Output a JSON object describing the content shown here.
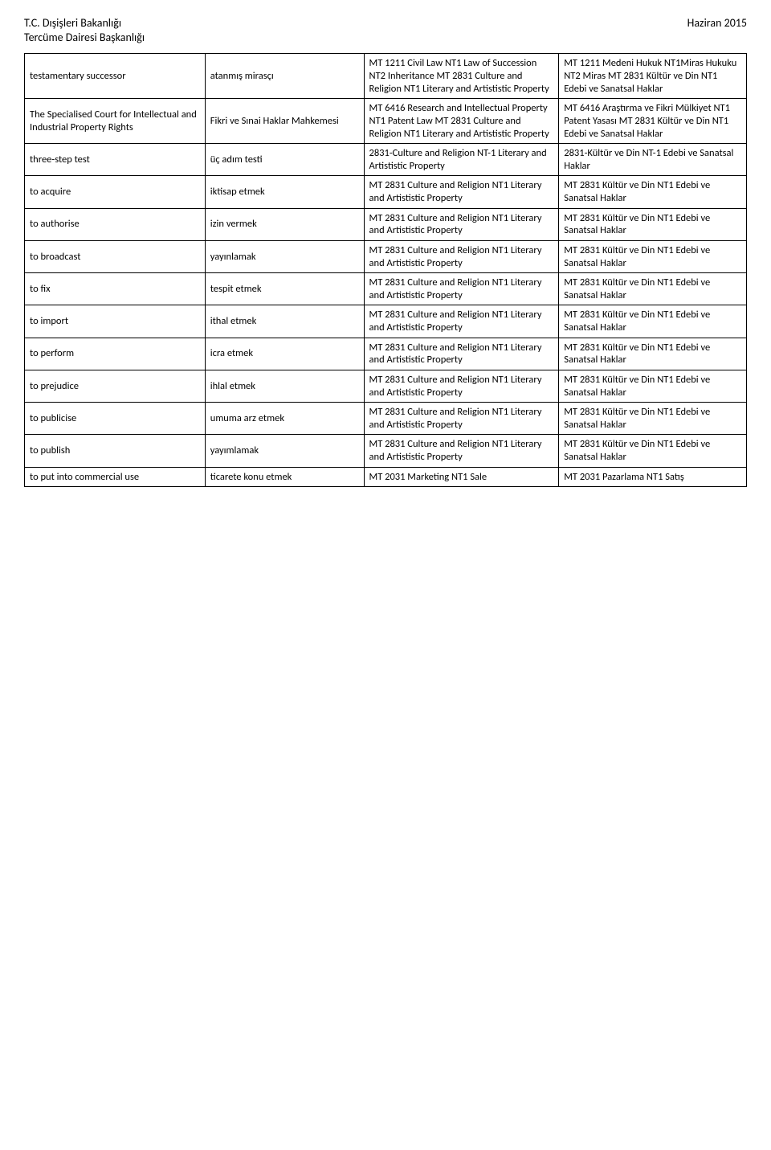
{
  "header": {
    "left_line1": "T.C. Dışişleri Bakanlığı",
    "left_line2": "Tercüme Dairesi Başkanlığı",
    "right": "Haziran 2015"
  },
  "rows": [
    {
      "en_term": "testamentary successor",
      "tr_term": "atanmış mirasçı",
      "en_cat": "MT 1211 Civil Law NT1 Law of Succession NT2 Inheritance MT 2831 Culture and Religion            NT1 Literary and Artististic Property",
      "tr_cat": "MT 1211 Medeni Hukuk NT1Miras Hukuku NT2 Miras MT 2831 Kültür ve Din NT1 Edebi ve Sanatsal Haklar"
    },
    {
      "en_term": "The Specialised Court for Intellectual and Industrial Property Rights",
      "tr_term": "Fikri ve Sınai Haklar Mahkemesi",
      "en_cat": "MT 6416  Research and Intellectual Property NT1  Patent Law MT 2831  Culture and Religion            NT1 Literary and Artististic Property",
      "tr_cat": "MT 6416 Araştırma ve Fikri Mülkiyet         NT1 Patent Yasası MT 2831  Kültür ve Din NT1 Edebi ve Sanatsal Haklar"
    },
    {
      "en_term": "three-step test",
      "tr_term": "üç adım testi",
      "en_cat": "2831-Culture and Religion NT-1 Literary and Artististic Property",
      "tr_cat": "2831-Kültür ve Din NT-1 Edebi ve Sanatsal Haklar"
    },
    {
      "en_term": "to acquire",
      "tr_term": "iktisap etmek",
      "en_cat": "MT 2831 Culture and Religion            NT1 Literary and Artististic Property",
      "tr_cat": "MT 2831 Kültür ve Din NT1 Edebi ve Sanatsal Haklar"
    },
    {
      "en_term": "to authorise",
      "tr_term": "izin vermek",
      "en_cat": "MT 2831 Culture and Religion            NT1 Literary and Artististic Property",
      "tr_cat": "MT 2831 Kültür ve Din NT1 Edebi ve Sanatsal Haklar"
    },
    {
      "en_term": "to broadcast",
      "tr_term": "yayınlamak",
      "en_cat": "MT 2831 Culture and Religion            NT1 Literary and Artististic Property",
      "tr_cat": "MT 2831 Kültür ve Din NT1 Edebi ve Sanatsal Haklar"
    },
    {
      "en_term": "to fix",
      "tr_term": "tespit etmek",
      "en_cat": "MT 2831 Culture and Religion            NT1 Literary and Artististic Property",
      "tr_cat": "MT 2831 Kültür ve Din NT1 Edebi ve Sanatsal Haklar"
    },
    {
      "en_term": "to import",
      "tr_term": "ithal etmek",
      "en_cat": "MT 2831 Culture and Religion            NT1 Literary and Artististic Property",
      "tr_cat": "MT 2831 Kültür ve Din NT1 Edebi ve Sanatsal Haklar"
    },
    {
      "en_term": "to perform",
      "tr_term": "icra etmek",
      "en_cat": "MT 2831 Culture and Religion            NT1 Literary and Artististic Property",
      "tr_cat": "MT 2831 Kültür ve Din NT1 Edebi ve Sanatsal Haklar"
    },
    {
      "en_term": "to prejudice",
      "tr_term": "ihlal etmek",
      "en_cat": "MT 2831 Culture and Religion            NT1 Literary and Artististic Property",
      "tr_cat": "MT 2831 Kültür ve Din NT1 Edebi ve Sanatsal Haklar"
    },
    {
      "en_term": "to publicise",
      "tr_term": "umuma arz etmek",
      "en_cat": "MT 2831 Culture and Religion            NT1 Literary and Artististic Property",
      "tr_cat": "MT 2831 Kültür ve Din NT1 Edebi ve Sanatsal Haklar"
    },
    {
      "en_term": "to publish",
      "tr_term": "yayımlamak",
      "en_cat": "MT 2831 Culture and Religion            NT1 Literary and Artististic Property",
      "tr_cat": "MT 2831 Kültür ve Din NT1 Edebi ve Sanatsal Haklar"
    },
    {
      "en_term": "to put into commercial use",
      "tr_term": "ticarete konu etmek",
      "en_cat": "MT 2031 Marketing NT1 Sale",
      "tr_cat": "MT 2031 Pazarlama NT1 Satış"
    }
  ]
}
